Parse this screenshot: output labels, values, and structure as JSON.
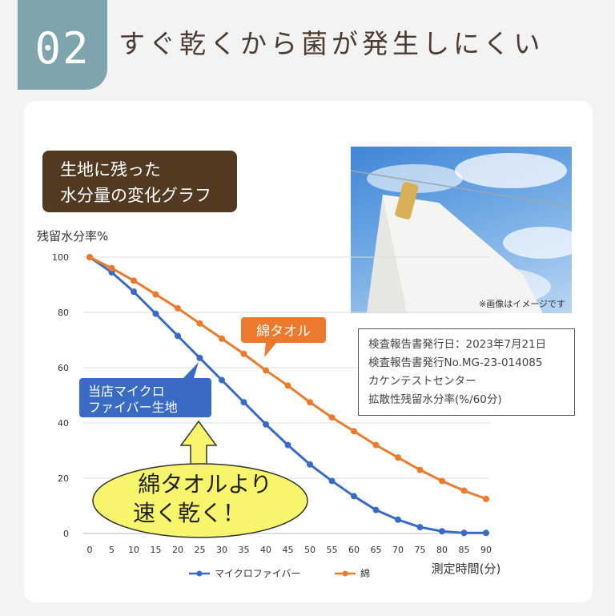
{
  "header": {
    "number": "02",
    "title": "すぐ乾くから菌が発生しにくい"
  },
  "graph_title": {
    "line1": "生地に残った",
    "line2": "水分量の変化グラフ"
  },
  "photo": {
    "caption": "※画像はイメージです"
  },
  "info": {
    "lines": [
      "検査報告書発行日：2023年7月21日",
      "検査報告書発行No.MG-23-014085",
      "カケンテストセンター",
      "拡散性残留水分率(%/60分)"
    ]
  },
  "callouts": {
    "cotton": "綿タオル",
    "micro_line1": "当店マイクロ",
    "micro_line2": "ファイバー生地",
    "bubble_line1": "綿タオルより",
    "bubble_line2": "速く乾く！"
  },
  "colors": {
    "microfiber": "#3a6bc4",
    "cotton": "#ec7a2d",
    "badge": "#7ea5ad",
    "title_box": "#523a22",
    "bubble": "#f6f56b"
  },
  "chart_data": {
    "type": "line",
    "ylabel": "残留水分率%",
    "xlabel": "測定時間(分)",
    "x": [
      0,
      5,
      10,
      15,
      20,
      25,
      30,
      35,
      40,
      45,
      50,
      55,
      60,
      65,
      70,
      75,
      80,
      85,
      90
    ],
    "xlim": [
      0,
      90
    ],
    "ylim": [
      0,
      100
    ],
    "yticks": [
      0,
      20,
      40,
      60,
      80,
      100
    ],
    "grid": "horizontal",
    "legend": "bottom",
    "series": [
      {
        "name": "マイクロファイバー",
        "color": "#3a6bc4",
        "values": [
          100,
          94.5,
          87.5,
          79.5,
          71.5,
          63.5,
          55.5,
          47.5,
          39.5,
          32,
          25,
          19,
          13.5,
          8.5,
          5,
          2.3,
          0.8,
          0.2,
          0.2
        ]
      },
      {
        "name": "綿",
        "color": "#ec7a2d",
        "values": [
          100,
          96,
          91.5,
          86.5,
          81.5,
          76,
          70.5,
          65,
          59,
          53.5,
          47.5,
          42,
          37,
          32,
          27.5,
          23,
          19,
          15.5,
          12.5
        ]
      }
    ]
  }
}
